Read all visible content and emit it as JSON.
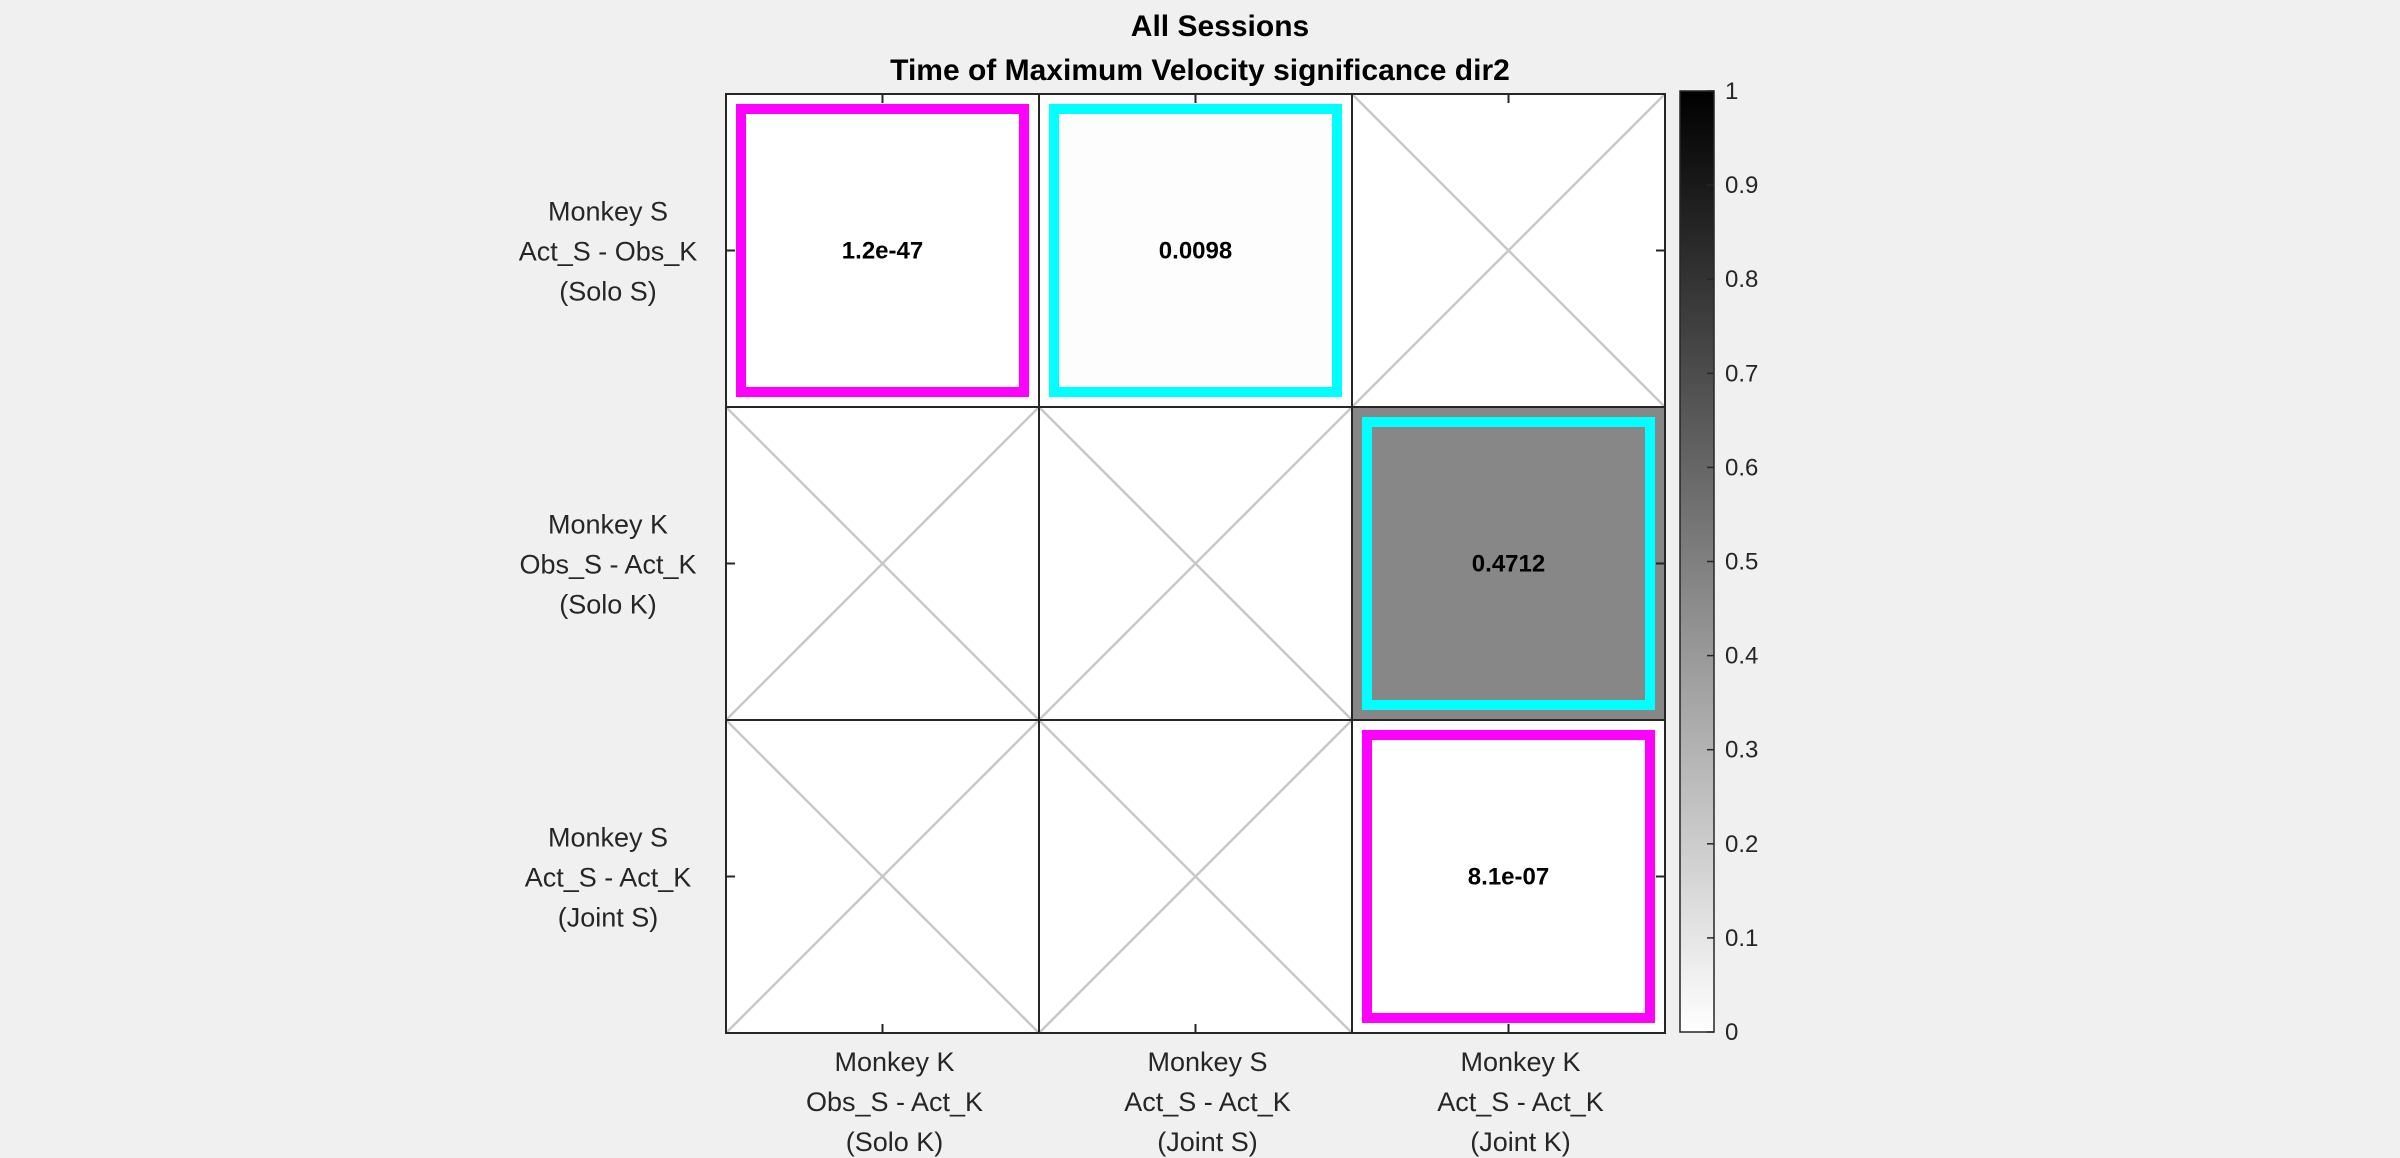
{
  "chart_data": {
    "type": "heatmap",
    "title": [
      "All Sessions",
      "Time of Maximum Velocity significance dir2"
    ],
    "rows": [
      [
        "Monkey S",
        "Act_S - Obs_K",
        "(Solo S)"
      ],
      [
        "Monkey K",
        "Obs_S - Act_K",
        "(Solo K)"
      ],
      [
        "Monkey S",
        "Act_S - Act_K",
        "(Joint S)"
      ]
    ],
    "columns": [
      [
        "Monkey K",
        "Obs_S - Act_K",
        "(Solo K)"
      ],
      [
        "Monkey S",
        "Act_S - Act_K",
        "(Joint S)"
      ],
      [
        "Monkey K",
        "Act_S - Act_K",
        "(Joint K)"
      ]
    ],
    "cells": [
      [
        {
          "value": 1.2e-47,
          "label": "1.2e-47",
          "outline": "magenta"
        },
        {
          "value": 0.0098,
          "label": "0.0098",
          "outline": "cyan"
        },
        null
      ],
      [
        null,
        null,
        {
          "value": 0.4712,
          "label": "0.4712",
          "outline": "cyan"
        }
      ],
      [
        null,
        null,
        {
          "value": 8.1e-07,
          "label": "8.1e-07",
          "outline": "magenta"
        }
      ]
    ],
    "colorbar": {
      "range": [
        0,
        1
      ],
      "ticks": [
        "0",
        "0.1",
        "0.2",
        "0.3",
        "0.4",
        "0.5",
        "0.6",
        "0.7",
        "0.8",
        "0.9",
        "1"
      ],
      "colormap": "white-to-black"
    },
    "missing_cell_marker": "cross"
  },
  "colors": {
    "background": "#f0f0f0",
    "magenta": "#ff00ff",
    "cyan": "#00ffff",
    "cross": "#c8c8c8",
    "grid": "#262626"
  }
}
